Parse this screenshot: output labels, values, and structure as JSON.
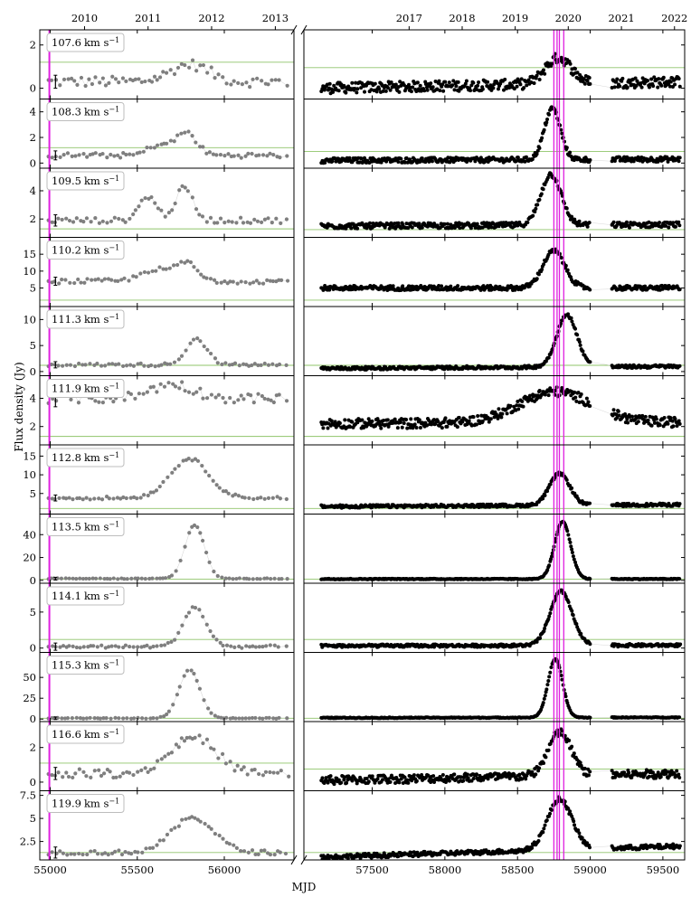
{
  "chart_data": {
    "type": "scatter",
    "figure_labels": {
      "xlabel": "MJD",
      "ylabel": "Flux density (Jy)",
      "unit_text": "km s",
      "unit_power": "−1"
    },
    "x_axis": {
      "left_range": [
        54940,
        56400
      ],
      "right_range": [
        57030,
        59650
      ],
      "left_ticks": [
        55000,
        55500,
        56000
      ],
      "right_ticks": [
        57500,
        58000,
        58500,
        59000,
        59500
      ],
      "top_left_ticks": [
        {
          "label": "2010",
          "mjd": 55197
        },
        {
          "label": "2011",
          "mjd": 55562
        },
        {
          "label": "2012",
          "mjd": 55927
        },
        {
          "label": "2013",
          "mjd": 56293
        }
      ],
      "top_right_ticks": [
        {
          "label": "2017",
          "mjd": 57754
        },
        {
          "label": "2018",
          "mjd": 58119
        },
        {
          "label": "2019",
          "mjd": 58484
        },
        {
          "label": "2020",
          "mjd": 58849
        },
        {
          "label": "2021",
          "mjd": 59215
        },
        {
          "label": "2022",
          "mjd": 59580
        }
      ],
      "vertical_markers_mjd": [
        54995,
        58750,
        58772,
        58788,
        58818
      ]
    },
    "colors": {
      "early": "#7f7f7f",
      "late": "#000000",
      "threshold": "#8fc46a",
      "marker": "#e020e0",
      "errorbar": "#000000"
    },
    "panels": [
      {
        "velocity": "107.6",
        "ylim": [
          -0.5,
          2.7
        ],
        "yticks": [
          0,
          2
        ],
        "threshold_left": 1.2,
        "threshold_right": 0.95,
        "base_left": 0.3,
        "base_right_start": 0.0,
        "base_right_end": 0.3,
        "noise": 0.25,
        "err": 0.3,
        "peaks_left": [
          {
            "mjd": 55800,
            "amp": 0.8,
            "width": 110
          }
        ],
        "peaks_right": [
          {
            "mjd": 58780,
            "amp": 1.2,
            "width": 90
          }
        ]
      },
      {
        "velocity": "108.3",
        "ylim": [
          -0.4,
          5.0
        ],
        "yticks": [
          0,
          2,
          4
        ],
        "threshold_left": 1.2,
        "threshold_right": 0.9,
        "base_left": 0.6,
        "base_right_start": 0.2,
        "base_right_end": 0.3,
        "noise": 0.2,
        "err": 0.35,
        "peaks_left": [
          {
            "mjd": 55620,
            "amp": 0.8,
            "width": 60
          },
          {
            "mjd": 55780,
            "amp": 1.8,
            "width": 60
          }
        ],
        "peaks_right": [
          {
            "mjd": 58740,
            "amp": 4.0,
            "width": 55
          }
        ]
      },
      {
        "velocity": "109.5",
        "ylim": [
          0.7,
          5.6
        ],
        "yticks": [
          2,
          4
        ],
        "threshold_left": 1.3,
        "threshold_right": 1.25,
        "base_left": 1.9,
        "base_right_start": 1.5,
        "base_right_end": 1.6,
        "noise": 0.2,
        "err": 0.4,
        "peaks_left": [
          {
            "mjd": 55560,
            "amp": 1.7,
            "width": 50
          },
          {
            "mjd": 55770,
            "amp": 2.3,
            "width": 50
          }
        ],
        "peaks_right": [
          {
            "mjd": 58730,
            "amp": 3.6,
            "width": 70
          }
        ]
      },
      {
        "velocity": "110.2",
        "ylim": [
          -0.5,
          20.0
        ],
        "yticks": [
          5,
          10,
          15
        ],
        "threshold_left": 1.4,
        "threshold_right": 1.4,
        "base_left": 7.0,
        "base_right_start": 5.0,
        "base_right_end": 5.0,
        "noise": 0.7,
        "err": 1.2,
        "peaks_left": [
          {
            "mjd": 55600,
            "amp": 3.5,
            "width": 80
          },
          {
            "mjd": 55780,
            "amp": 5.5,
            "width": 60
          }
        ],
        "peaks_right": [
          {
            "mjd": 58750,
            "amp": 11.0,
            "width": 75
          }
        ]
      },
      {
        "velocity": "111.3",
        "ylim": [
          -0.8,
          12.5
        ],
        "yticks": [
          0,
          5,
          10
        ],
        "threshold_left": 1.2,
        "threshold_right": 1.2,
        "base_left": 1.3,
        "base_right_start": 0.6,
        "base_right_end": 1.0,
        "noise": 0.3,
        "err": 0.6,
        "peaks_left": [
          {
            "mjd": 55840,
            "amp": 5.0,
            "width": 60
          }
        ],
        "peaks_right": [
          {
            "mjd": 58840,
            "amp": 10.0,
            "width": 70
          }
        ]
      },
      {
        "velocity": "111.9",
        "ylim": [
          0.7,
          5.6
        ],
        "yticks": [
          2,
          4
        ],
        "threshold_left": 1.3,
        "threshold_right": 1.3,
        "base_left": 4.0,
        "base_right_start": 2.2,
        "base_right_end": 2.3,
        "noise": 0.35,
        "err": 0.6,
        "peaks_left": [
          {
            "mjd": 55700,
            "amp": 1.0,
            "width": 120
          }
        ],
        "peaks_right": [
          {
            "mjd": 58760,
            "amp": 2.2,
            "width": 250
          }
        ]
      },
      {
        "velocity": "112.8",
        "ylim": [
          -0.5,
          18.0
        ],
        "yticks": [
          5,
          10,
          15
        ],
        "threshold_left": 1.0,
        "threshold_right": 1.0,
        "base_left": 3.8,
        "base_right_start": 1.5,
        "base_right_end": 2.0,
        "noise": 0.4,
        "err": 0.8,
        "peaks_left": [
          {
            "mjd": 55800,
            "amp": 10.5,
            "width": 110
          }
        ],
        "peaks_right": [
          {
            "mjd": 58790,
            "amp": 8.5,
            "width": 70
          }
        ]
      },
      {
        "velocity": "113.5",
        "ylim": [
          -2.5,
          58.0
        ],
        "yticks": [
          0,
          20,
          40
        ],
        "threshold_left": 1.0,
        "threshold_right": 1.0,
        "base_left": 1.5,
        "base_right_start": 1.2,
        "base_right_end": 1.2,
        "noise": 0.4,
        "err": 1.2,
        "peaks_left": [
          {
            "mjd": 55830,
            "amp": 47,
            "width": 55
          }
        ],
        "peaks_right": [
          {
            "mjd": 58810,
            "amp": 50,
            "width": 55
          }
        ]
      },
      {
        "velocity": "114.1",
        "ylim": [
          -0.6,
          9.0
        ],
        "yticks": [
          0,
          5
        ],
        "threshold_left": 1.2,
        "threshold_right": 1.2,
        "base_left": 0.2,
        "base_right_start": 0.3,
        "base_right_end": 0.4,
        "noise": 0.2,
        "err": 0.5,
        "peaks_left": [
          {
            "mjd": 55830,
            "amp": 5.5,
            "width": 65
          }
        ],
        "peaks_right": [
          {
            "mjd": 58800,
            "amp": 7.5,
            "width": 75
          }
        ]
      },
      {
        "velocity": "115.3",
        "ylim": [
          -3.0,
          80.0
        ],
        "yticks": [
          0,
          25,
          50
        ],
        "threshold_left": 1.0,
        "threshold_right": 1.0,
        "base_left": 1.0,
        "base_right_start": 1.5,
        "base_right_end": 2.0,
        "noise": 0.5,
        "err": 1.5,
        "peaks_left": [
          {
            "mjd": 55800,
            "amp": 58,
            "width": 60
          }
        ],
        "peaks_right": [
          {
            "mjd": 58760,
            "amp": 70,
            "width": 50
          }
        ]
      },
      {
        "velocity": "116.6",
        "ylim": [
          -0.5,
          3.5
        ],
        "yticks": [
          0,
          2
        ],
        "threshold_left": 1.1,
        "threshold_right": 0.75,
        "base_left": 0.5,
        "base_right_start": 0.1,
        "base_right_end": 0.5,
        "noise": 0.25,
        "err": 0.35,
        "peaks_left": [
          {
            "mjd": 55820,
            "amp": 2.1,
            "width": 130
          }
        ],
        "peaks_right": [
          {
            "mjd": 58790,
            "amp": 2.5,
            "width": 80
          }
        ]
      },
      {
        "velocity": "119.9",
        "ylim": [
          0.5,
          8.0
        ],
        "yticks": [
          2.5,
          5.0,
          7.5
        ],
        "threshold_left": 1.3,
        "threshold_right": 1.3,
        "base_left": 1.3,
        "base_right_start": 0.8,
        "base_right_end": 2.0,
        "noise": 0.25,
        "err": 0.6,
        "peaks_left": [
          {
            "mjd": 55820,
            "amp": 3.8,
            "width": 120
          }
        ],
        "peaks_right": [
          {
            "mjd": 58790,
            "amp": 5.5,
            "width": 85
          }
        ]
      }
    ]
  }
}
